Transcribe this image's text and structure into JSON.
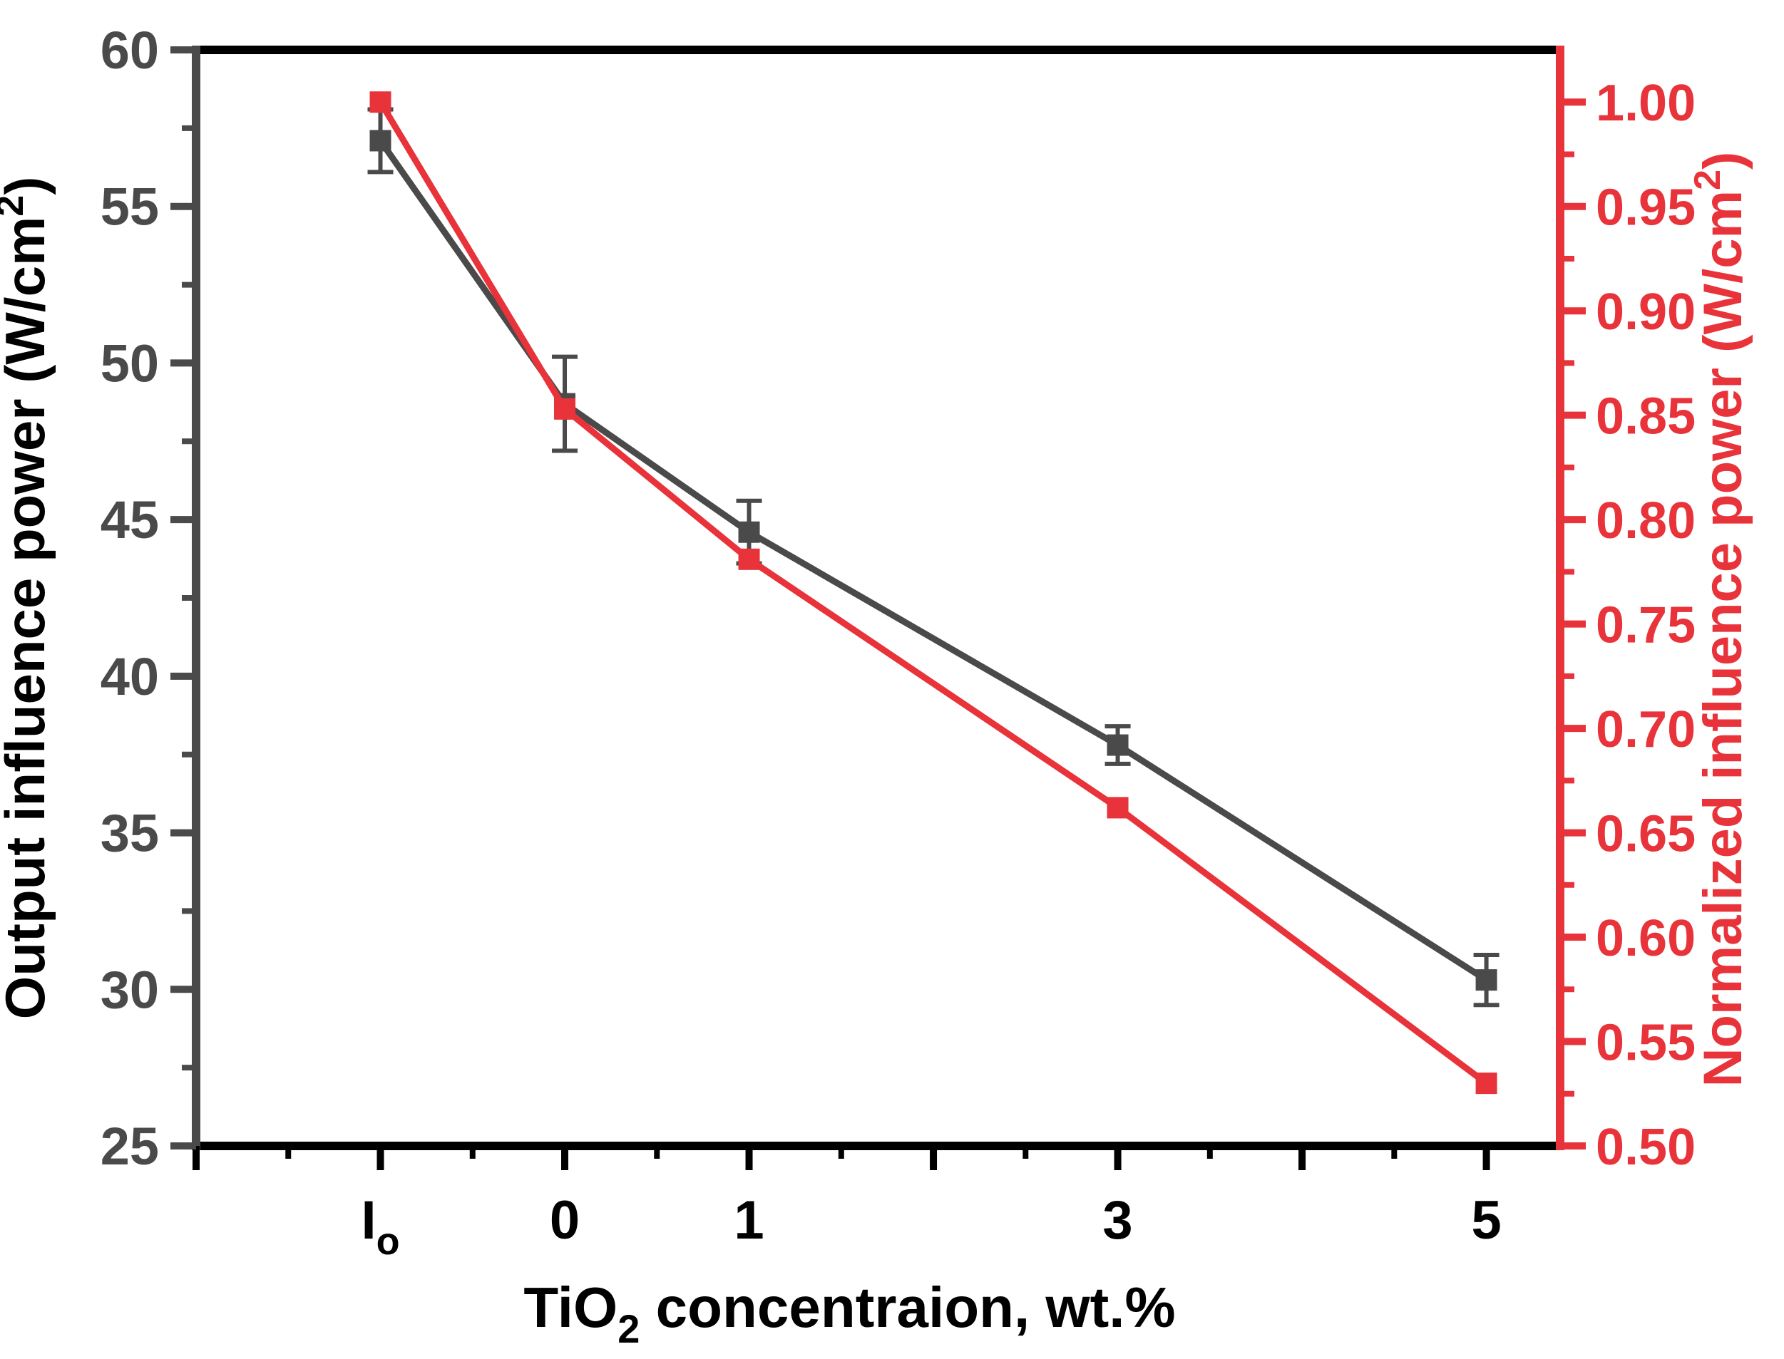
{
  "chart_data": {
    "type": "line",
    "dual_axis": true,
    "categories": [
      "I",
      "0",
      "1",
      "3",
      "5"
    ],
    "category_subscripts": [
      "o",
      "",
      "",
      "",
      ""
    ],
    "x_positions": [
      -1,
      0,
      1,
      3,
      5
    ],
    "xlim": [
      -2,
      5.4
    ],
    "xlabel": {
      "main": "TiO",
      "sub": "2",
      "rest": " concentraion, wt.%"
    },
    "left_axis": {
      "ylim": [
        25,
        60
      ],
      "ticks": [
        25,
        30,
        35,
        40,
        45,
        50,
        55,
        60
      ],
      "tick_labels": [
        "25",
        "30",
        "35",
        "40",
        "45",
        "50",
        "55",
        "60"
      ],
      "label": {
        "main": "Output influence power (W/cm",
        "sup": "2",
        "rest": ")"
      },
      "color": "#4a4a4a",
      "label_color": "#000000"
    },
    "right_axis": {
      "ylim": [
        0.5,
        1.025
      ],
      "ticks": [
        0.5,
        0.55,
        0.6,
        0.65,
        0.7,
        0.75,
        0.8,
        0.85,
        0.9,
        0.95,
        1.0
      ],
      "tick_labels": [
        "0.50",
        "0.55",
        "0.60",
        "0.65",
        "0.70",
        "0.75",
        "0.80",
        "0.85",
        "0.90",
        "0.95",
        "1.00"
      ],
      "label": {
        "main": "Normalized influence power (W/cm",
        "sup": "2",
        "rest": ")"
      },
      "color": "#e8333a"
    },
    "series": [
      {
        "name": "Output influence power",
        "axis": "left",
        "color": "#4a4a4a",
        "values": [
          57.1,
          48.7,
          44.6,
          37.8,
          30.3
        ],
        "errors": [
          1.0,
          1.5,
          1.0,
          0.6,
          0.8
        ]
      },
      {
        "name": "Normalized influence power",
        "axis": "right",
        "color": "#e8333a",
        "values": [
          1.0,
          0.853,
          0.781,
          0.662,
          0.53
        ]
      }
    ]
  }
}
